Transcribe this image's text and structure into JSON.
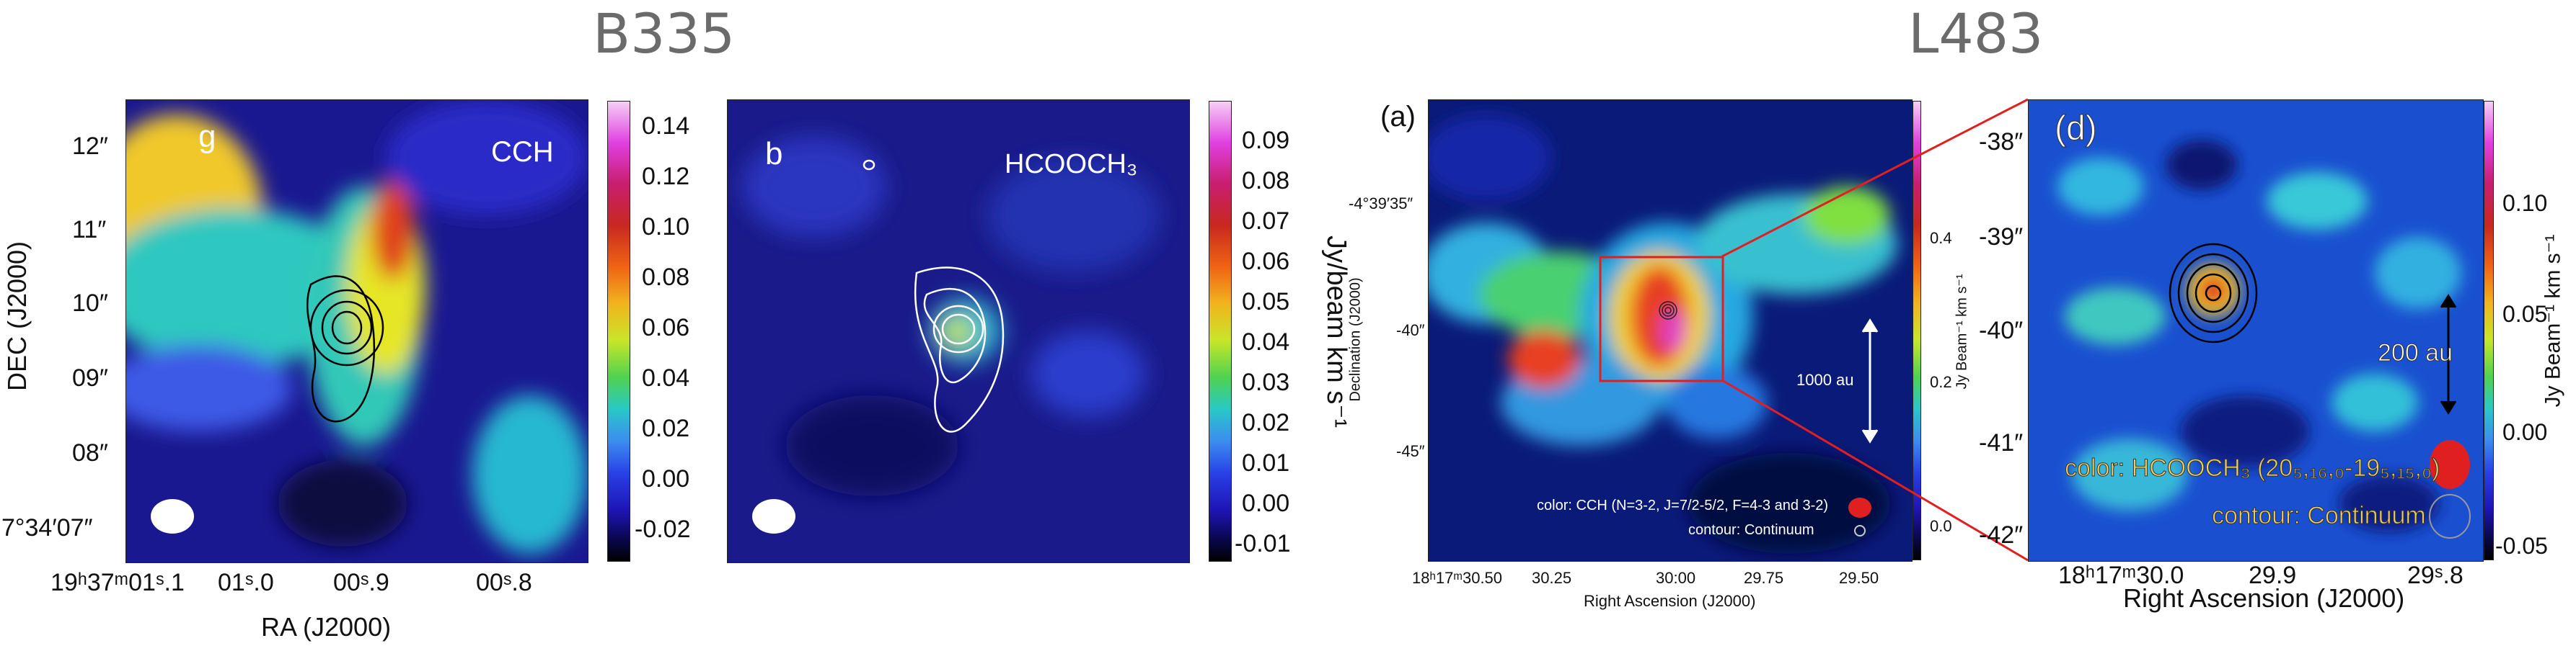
{
  "titles": {
    "left": "B335",
    "right": "L483"
  },
  "panel_g": {
    "letter": "g",
    "molecule": "CCH",
    "y_ticks": [
      "12″",
      "11″",
      "10″",
      "09″",
      "08″",
      "7°34′07″"
    ],
    "y_label": "DEC (J2000)",
    "x_ticks": [
      "19ʰ37ᵐ01ˢ.1",
      "01ˢ.0",
      "00ˢ.9",
      "00ˢ.8"
    ],
    "x_label": "RA (J2000)",
    "cbar_ticks": [
      "0.14",
      "0.12",
      "0.10",
      "0.08",
      "0.06",
      "0.04",
      "0.02",
      "0.00",
      "-0.02"
    ]
  },
  "panel_b": {
    "letter": "b",
    "molecule": "HCOOCH₃",
    "cbar_ticks": [
      "0.09",
      "0.08",
      "0.07",
      "0.06",
      "0.05",
      "0.04",
      "0.03",
      "0.02",
      "0.01",
      "0.00",
      "-0.01"
    ],
    "cbar_label": "Jy/beam km s⁻¹"
  },
  "panel_a": {
    "letter": "(a)",
    "dec_ticks": [
      "-4°39′35″",
      "-40″",
      "-45″"
    ],
    "dec_label": "Declination (J2000)",
    "ra_ticks": [
      "18ʰ17ᵐ30.50",
      "30.25",
      "30:00",
      "29.75",
      "29.50"
    ],
    "ra_label": "Right Ascension (J2000)",
    "cbar_ticks": [
      "0.4",
      "0.2",
      "0.0"
    ],
    "cbar_label": "Jy Beam⁻¹ km s⁻¹",
    "scale": "1000 au",
    "legend_color": "color: CCH (N=3-2, J=7/2-5/2, F=4-3 and 3-2)",
    "legend_contour": "contour: Continuum"
  },
  "panel_d": {
    "letter": "(d)",
    "dec_ticks": [
      "-38″",
      "-39″",
      "-40″",
      "-41″",
      "-42″"
    ],
    "ra_ticks": [
      "18ʰ17ᵐ30.0",
      "29.9",
      "29ˢ.8"
    ],
    "ra_label": "Right Ascension (J2000)",
    "cbar_ticks": [
      "0.10",
      "0.05",
      "0.00",
      "-0.05"
    ],
    "cbar_label": "Jy Beam⁻¹ km s⁻¹",
    "scale": "200 au",
    "legend_color": "color: HCOOCH₃ (20₅,₁₆,₀-19₅,₁₅,₀)",
    "legend_contour": "contour: Continuum"
  },
  "colors": {
    "zoom_lines": "#e02020",
    "title_gray": "#6b6b6b"
  }
}
